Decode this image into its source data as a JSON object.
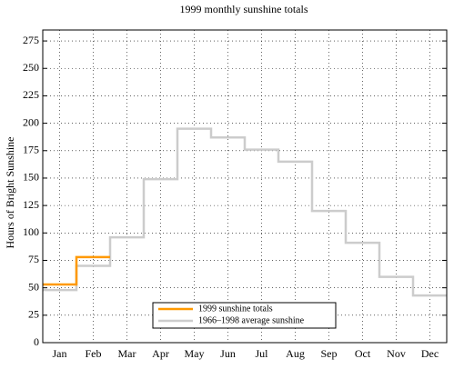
{
  "chart_data": {
    "type": "step",
    "title": "1999 monthly sunshine totals",
    "ylabel": "Hours of Bright Sunshine",
    "categories": [
      "Jan",
      "Feb",
      "Mar",
      "Apr",
      "May",
      "Jun",
      "Jul",
      "Aug",
      "Sep",
      "Oct",
      "Nov",
      "Dec"
    ],
    "series": [
      {
        "name": "1999 sunshine totals",
        "color": "#ff9900",
        "values": [
          53,
          78,
          null,
          null,
          null,
          null,
          null,
          null,
          null,
          null,
          null,
          null
        ]
      },
      {
        "name": "1966–1998 average sunshine",
        "color": "#cccccc",
        "values": [
          48,
          70,
          96,
          149,
          195,
          187,
          176,
          165,
          120,
          91,
          60,
          43
        ]
      }
    ],
    "ylim": [
      0,
      285
    ],
    "yticks": [
      0,
      25,
      50,
      75,
      100,
      125,
      150,
      175,
      200,
      225,
      250,
      275
    ],
    "grid": true,
    "legend": "lower center"
  }
}
